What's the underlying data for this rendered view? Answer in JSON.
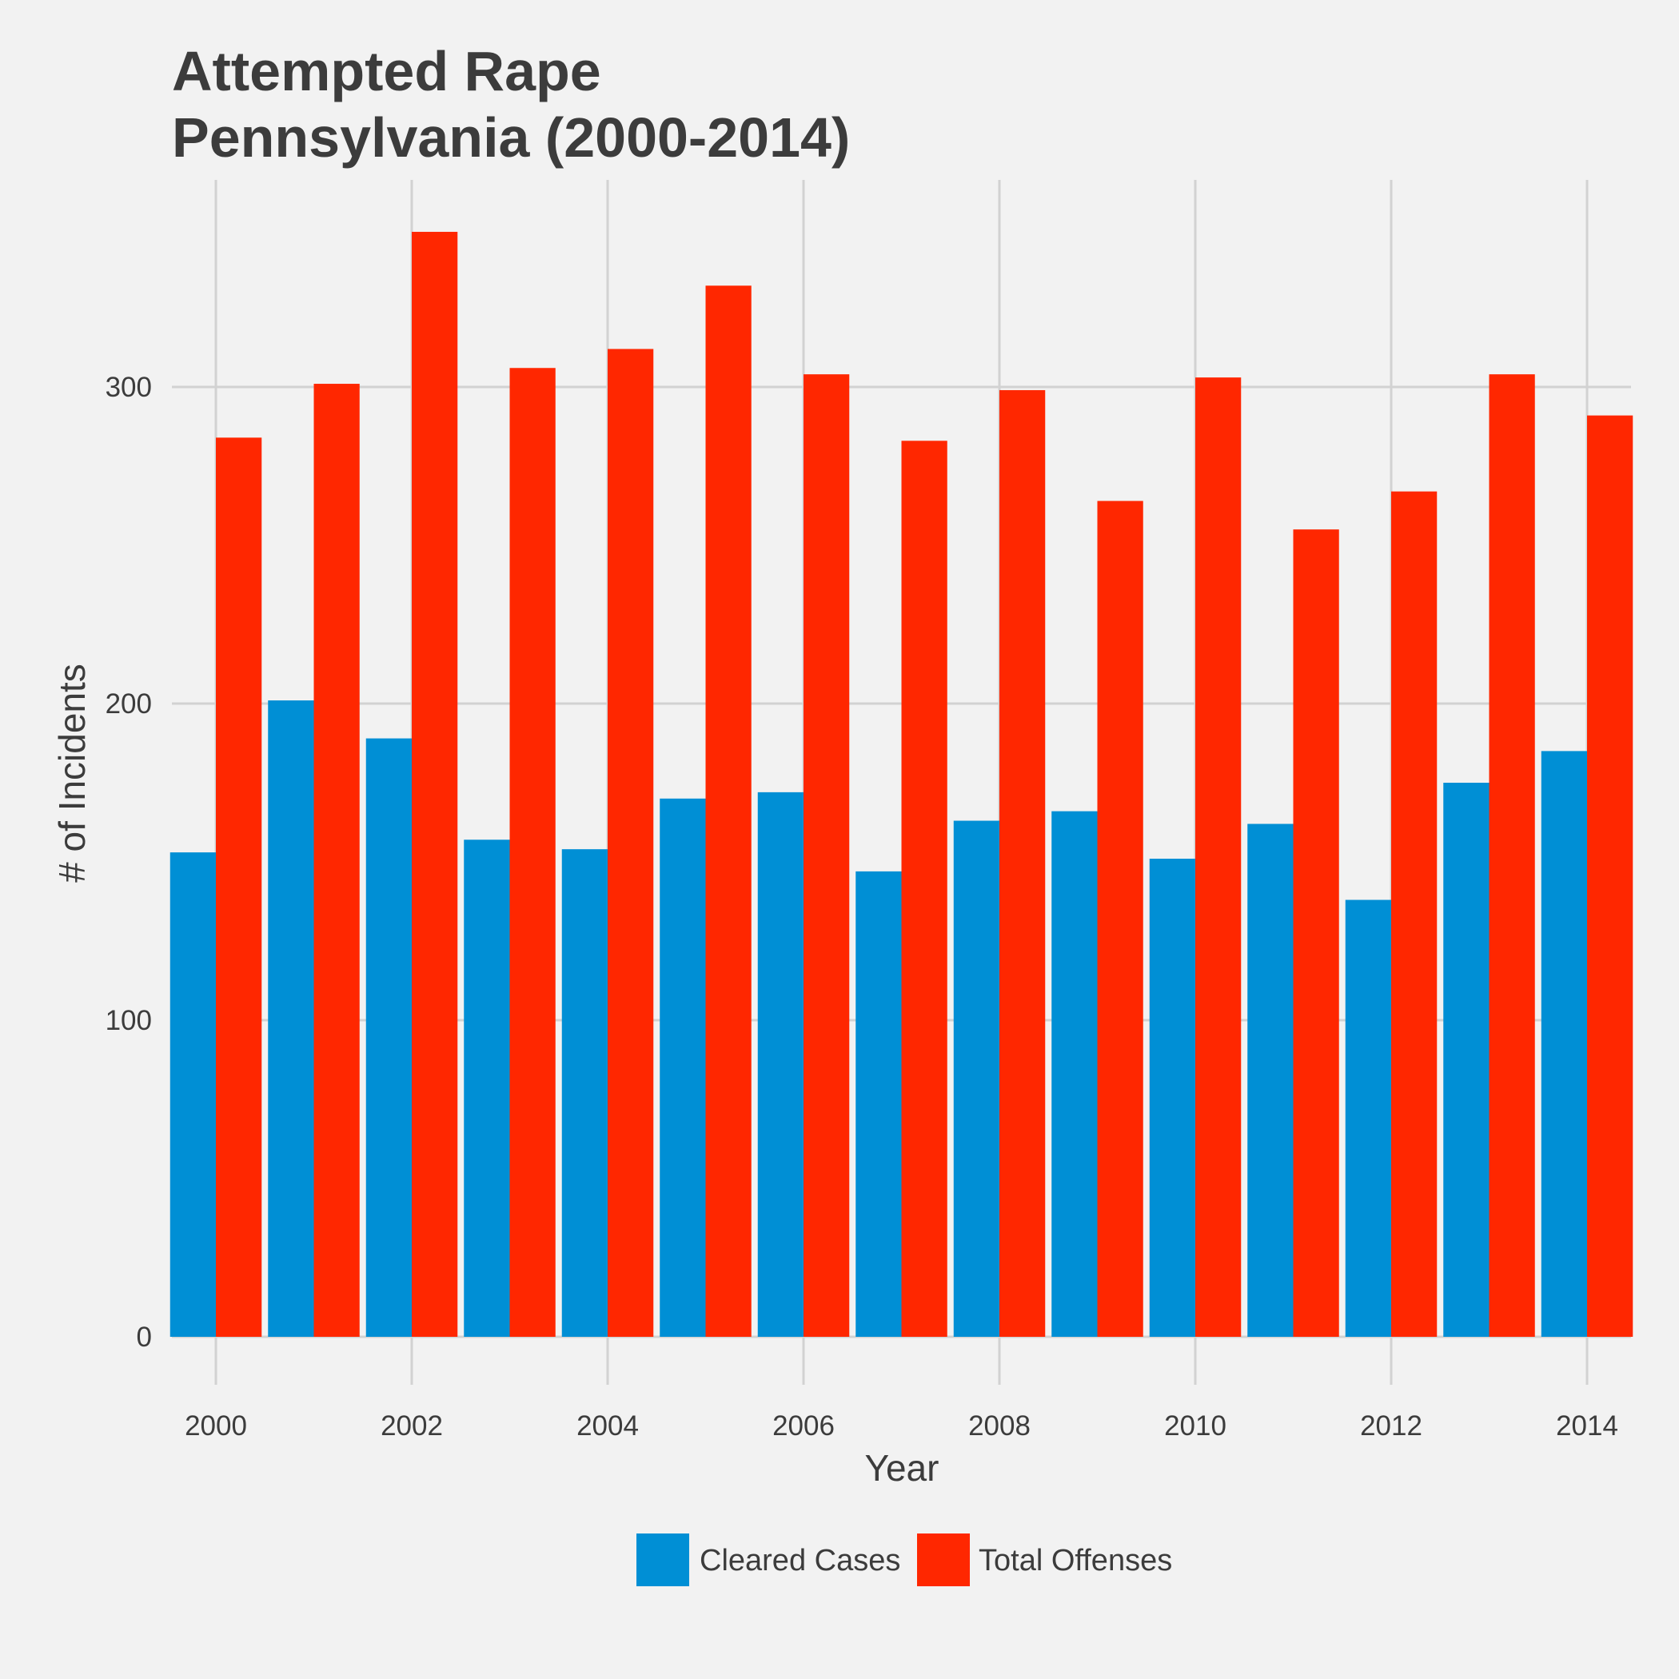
{
  "chart_data": {
    "type": "bar",
    "title": "Attempted Rape",
    "subtitle": "Pennsylvania (2000-2014)",
    "xlabel": "Year",
    "ylabel": "# of Incidents",
    "x": [
      2000,
      2001,
      2002,
      2003,
      2004,
      2005,
      2006,
      2007,
      2008,
      2009,
      2010,
      2011,
      2012,
      2013,
      2014
    ],
    "x_ticks": [
      "2000",
      "2002",
      "2004",
      "2006",
      "2008",
      "2010",
      "2012",
      "2014"
    ],
    "y_ticks": [
      "0",
      "100",
      "200",
      "300"
    ],
    "ylim": [
      0,
      360
    ],
    "grid": true,
    "legend_position": "bottom",
    "series": [
      {
        "name": "Cleared Cases",
        "color": "#008fd5",
        "values": [
          153,
          201,
          189,
          157,
          154,
          170,
          172,
          147,
          163,
          166,
          151,
          162,
          138,
          175,
          185
        ]
      },
      {
        "name": "Total Offenses",
        "color": "#ff2700",
        "values": [
          284,
          301,
          349,
          306,
          312,
          332,
          304,
          283,
          299,
          264,
          303,
          255,
          267,
          304,
          291
        ]
      }
    ]
  }
}
